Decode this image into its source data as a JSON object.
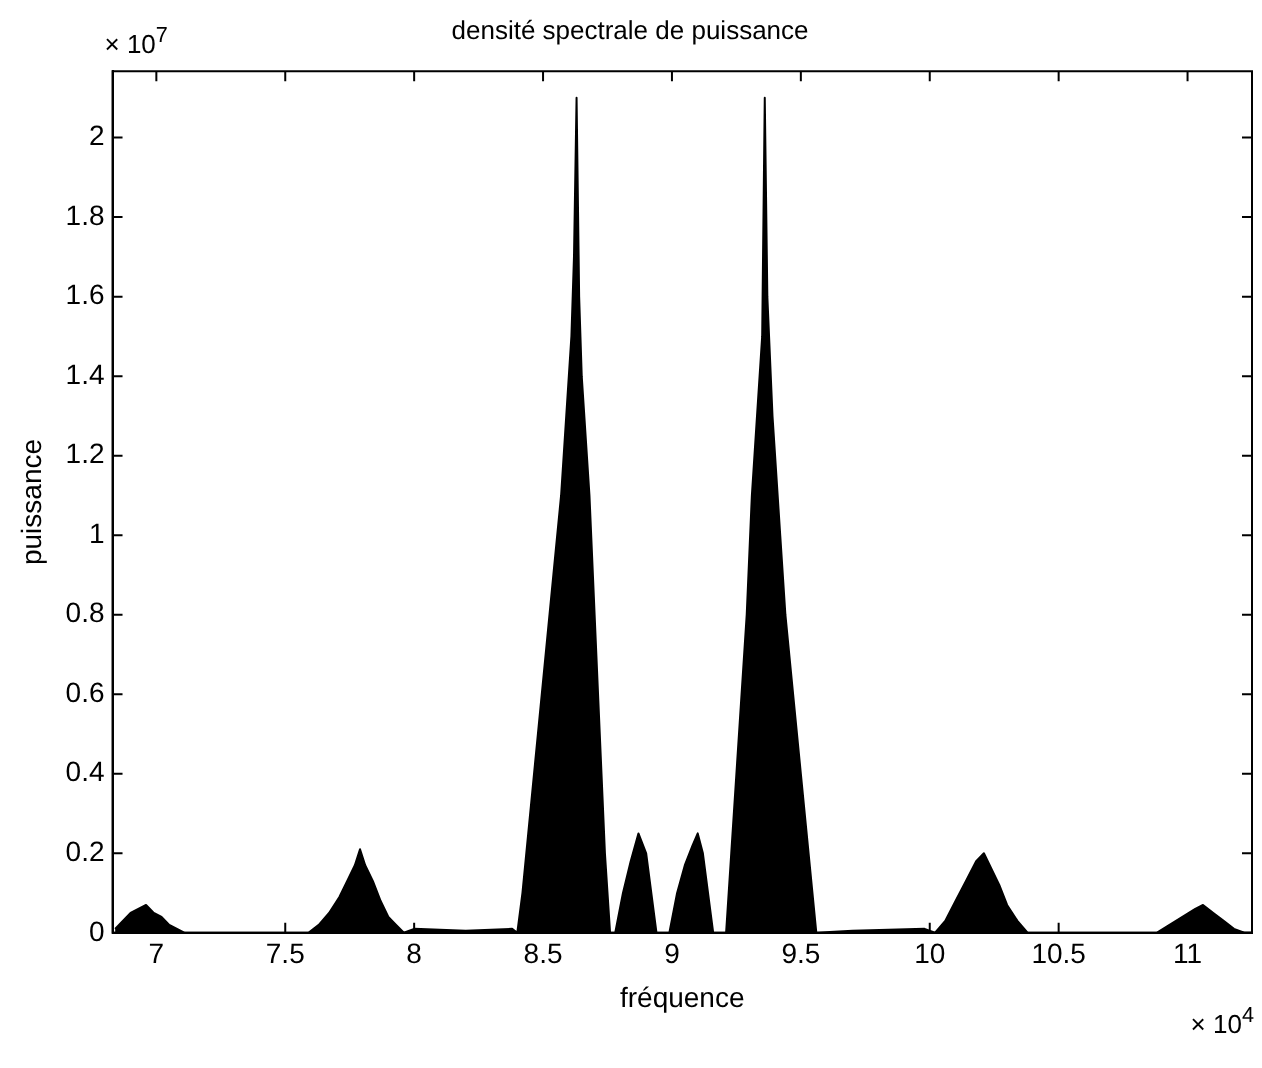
{
  "chart_data": {
    "type": "area",
    "title": "densité spectrale de puissance",
    "xlabel": "fréquence",
    "ylabel": "puissance",
    "annotations": [
      "× 10$^{7}$",
      "× 10$^{4}$"
    ],
    "x": [
      6.84,
      6.87,
      6.9,
      6.93,
      6.96,
      6.99,
      7.02,
      7.05,
      7.08,
      7.11,
      7.3,
      7.55,
      7.59,
      7.63,
      7.67,
      7.71,
      7.74,
      7.77,
      7.79,
      7.81,
      7.84,
      7.87,
      7.9,
      7.93,
      7.96,
      8.0,
      8.2,
      8.38,
      8.4,
      8.42,
      8.45,
      8.48,
      8.51,
      8.54,
      8.57,
      8.59,
      8.61,
      8.62,
      8.63,
      8.64,
      8.65,
      8.66,
      8.68,
      8.7,
      8.72,
      8.74,
      8.76,
      8.78,
      8.81,
      8.84,
      8.87,
      8.9,
      8.92,
      8.94,
      8.99,
      9.02,
      9.05,
      9.08,
      9.1,
      9.12,
      9.14,
      9.16,
      9.21,
      9.23,
      9.26,
      9.29,
      9.31,
      9.33,
      9.35,
      9.36,
      9.37,
      9.39,
      9.4,
      9.42,
      9.44,
      9.47,
      9.5,
      9.53,
      9.56,
      9.7,
      9.98,
      10.02,
      10.06,
      10.1,
      10.14,
      10.18,
      10.21,
      10.24,
      10.27,
      10.3,
      10.34,
      10.38,
      10.6,
      10.87,
      10.88,
      10.93,
      10.98,
      11.03,
      11.06,
      11.1,
      11.14,
      11.18,
      11.22,
      11.25
    ],
    "series": [
      {
        "color": "#000000",
        "values": [
          0.01,
          0.03,
          0.05,
          0.06,
          0.07,
          0.05,
          0.04,
          0.02,
          0.01,
          0,
          0,
          0,
          0,
          0.02,
          0.05,
          0.09,
          0.13,
          0.17,
          0.21,
          0.17,
          0.13,
          0.08,
          0.04,
          0.02,
          0,
          0.01,
          0.005,
          0.01,
          0,
          0.1,
          0.3,
          0.5,
          0.7,
          0.9,
          1.1,
          1.3,
          1.5,
          1.7,
          2.1,
          1.6,
          1.4,
          1.3,
          1.1,
          0.8,
          0.5,
          0.2,
          0,
          0,
          0.1,
          0.18,
          0.25,
          0.2,
          0.1,
          0,
          0,
          0.1,
          0.17,
          0.22,
          0.25,
          0.2,
          0.1,
          0,
          0,
          0.2,
          0.5,
          0.8,
          1.1,
          1.3,
          1.5,
          2.1,
          1.6,
          1.3,
          1.2,
          1.0,
          0.8,
          0.6,
          0.4,
          0.2,
          0,
          0.005,
          0.01,
          0,
          0.03,
          0.08,
          0.13,
          0.18,
          0.2,
          0.16,
          0.12,
          0.07,
          0.03,
          0,
          0,
          0,
          0,
          0.02,
          0.04,
          0.06,
          0.07,
          0.05,
          0.03,
          0.01,
          0,
          0
        ]
      }
    ],
    "xlim": [
      6.83,
      11.25
    ],
    "xticks": [
      7,
      7.5,
      8,
      8.5,
      9,
      9.5,
      10,
      10.5,
      11
    ],
    "ylim": [
      0,
      2.167
    ],
    "yticks": [
      0,
      0.2,
      0.4,
      0.6,
      0.8,
      1,
      1.2,
      1.4,
      1.6,
      1.8,
      2
    ],
    "grid": false,
    "legend": false
  }
}
